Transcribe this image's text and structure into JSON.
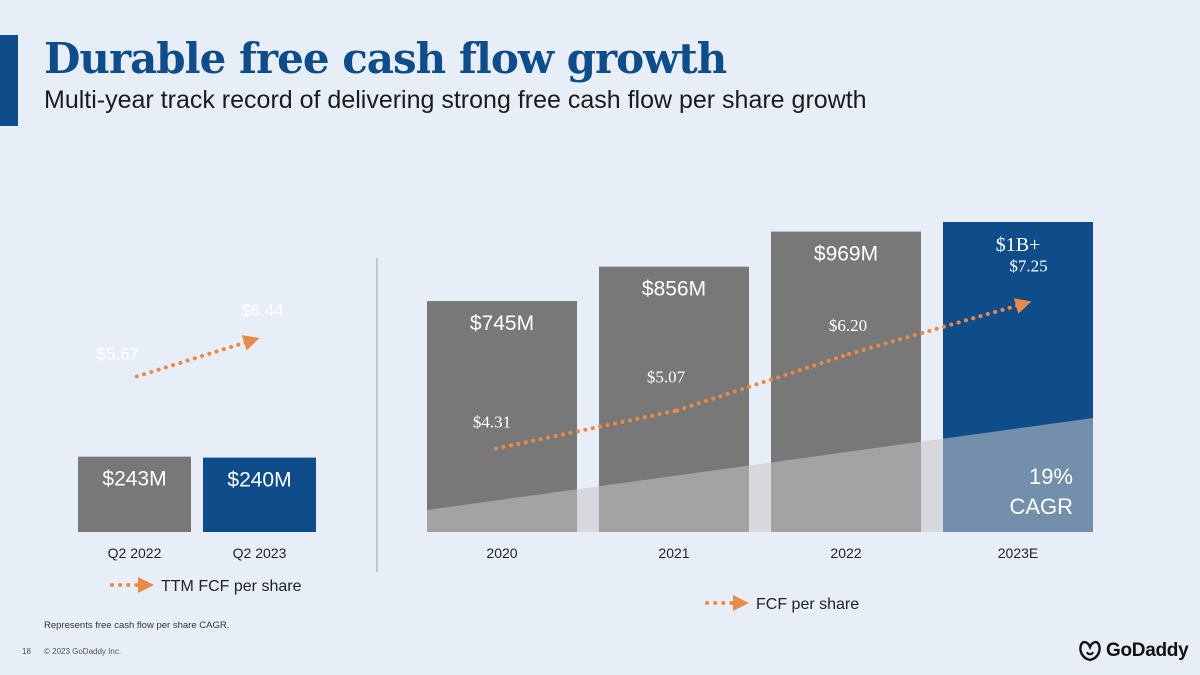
{
  "slide": {
    "title": "Durable free cash flow growth",
    "subtitle": "Multi-year track record of delivering strong free cash flow per share growth",
    "footnote": "Represents free cash flow per share CAGR.",
    "page_number": "18",
    "copyright": "© 2023 GoDaddy Inc.",
    "logo_text": "GoDaddy"
  },
  "colors": {
    "background": "#e8eef8",
    "actual_bar": "#787878",
    "highlight_bar": "#0e4c8a",
    "arrow": "#ea8a4a",
    "cagr_area": "#c6c6c6"
  },
  "chart_data": [
    {
      "type": "bar",
      "categories": [
        "Q2 2022",
        "Q2 2023"
      ],
      "values": [
        243,
        240
      ],
      "value_labels": [
        "$243M",
        "$240M"
      ],
      "highlighted": [
        false,
        true
      ],
      "ylim": [
        0,
        1150
      ],
      "line": {
        "name": "TTM FCF per share",
        "values": [
          5.67,
          6.44
        ],
        "labels": [
          "$5.67",
          "$6.44"
        ]
      },
      "legend": "bottom"
    },
    {
      "type": "bar",
      "categories": [
        "2020",
        "2021",
        "2022",
        "2023E"
      ],
      "values": [
        745,
        856,
        969,
        1000
      ],
      "value_labels": [
        "$745M",
        "$856M",
        "$969M",
        "$1B+"
      ],
      "highlighted": [
        false,
        false,
        false,
        true
      ],
      "ylim": [
        0,
        1150
      ],
      "line": {
        "name": "FCF per share",
        "values": [
          4.31,
          5.07,
          6.2,
          7.25
        ],
        "labels": [
          "$4.31",
          "$5.07",
          "$6.20",
          "$7.25"
        ]
      },
      "annotation": {
        "value": "19%",
        "label": "CAGR"
      },
      "legend": "bottom"
    }
  ]
}
